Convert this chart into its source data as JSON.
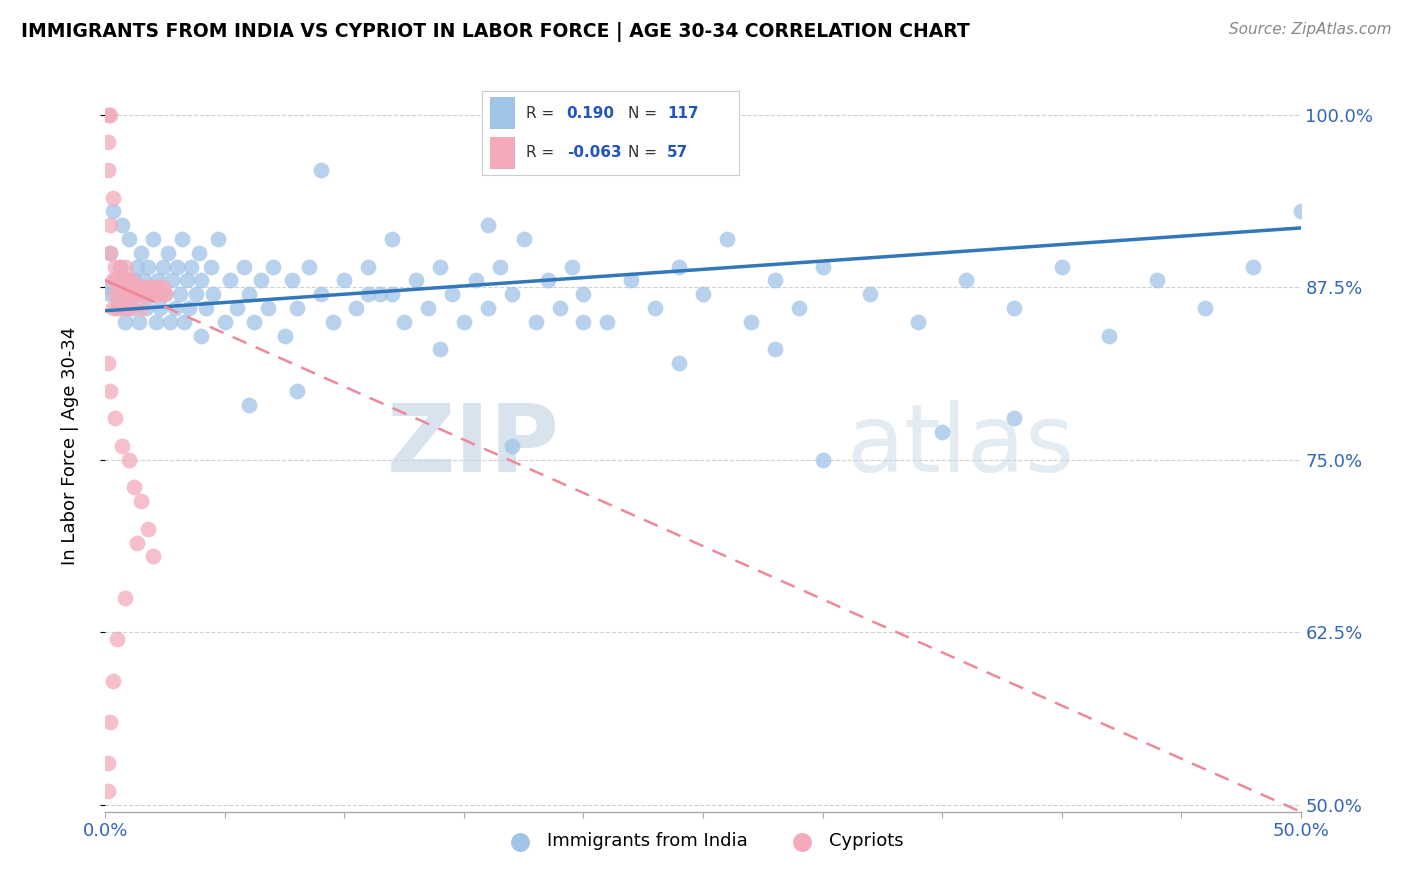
{
  "title": "IMMIGRANTS FROM INDIA VS CYPRIOT IN LABOR FORCE | AGE 30-34 CORRELATION CHART",
  "source": "Source: ZipAtlas.com",
  "ylabel": "In Labor Force | Age 30-34",
  "xlim": [
    0.0,
    0.5
  ],
  "ylim": [
    0.495,
    1.025
  ],
  "xticks": [
    0.0,
    0.05,
    0.1,
    0.15,
    0.2,
    0.25,
    0.3,
    0.35,
    0.4,
    0.45,
    0.5
  ],
  "xticklabels": [
    "0.0%",
    "",
    "",
    "",
    "",
    "",
    "",
    "",
    "",
    "",
    "50.0%"
  ],
  "ytick_positions": [
    0.5,
    0.625,
    0.75,
    0.875,
    1.0
  ],
  "ytick_labels": [
    "50.0%",
    "62.5%",
    "75.0%",
    "87.5%",
    "100.0%"
  ],
  "legend_r_india": "0.190",
  "legend_n_india": "117",
  "legend_r_cypriot": "-0.063",
  "legend_n_cypriot": "57",
  "color_india": "#A0C4E8",
  "color_cypriot": "#F4AABB",
  "color_india_line": "#3377BB",
  "color_cypriot_line": "#EE8899",
  "watermark_zip": "ZIP",
  "watermark_atlas": "atlas",
  "india_x": [
    0.001,
    0.002,
    0.002,
    0.003,
    0.004,
    0.005,
    0.006,
    0.007,
    0.008,
    0.009,
    0.01,
    0.01,
    0.011,
    0.012,
    0.013,
    0.014,
    0.015,
    0.015,
    0.016,
    0.017,
    0.018,
    0.019,
    0.02,
    0.021,
    0.022,
    0.023,
    0.024,
    0.025,
    0.026,
    0.027,
    0.028,
    0.029,
    0.03,
    0.031,
    0.032,
    0.033,
    0.034,
    0.035,
    0.036,
    0.038,
    0.039,
    0.04,
    0.042,
    0.044,
    0.045,
    0.047,
    0.05,
    0.052,
    0.055,
    0.058,
    0.06,
    0.062,
    0.065,
    0.068,
    0.07,
    0.075,
    0.078,
    0.08,
    0.085,
    0.09,
    0.095,
    0.1,
    0.105,
    0.11,
    0.115,
    0.12,
    0.125,
    0.13,
    0.135,
    0.14,
    0.145,
    0.15,
    0.155,
    0.16,
    0.165,
    0.17,
    0.175,
    0.18,
    0.185,
    0.19,
    0.195,
    0.2,
    0.21,
    0.22,
    0.23,
    0.24,
    0.25,
    0.26,
    0.27,
    0.28,
    0.29,
    0.3,
    0.32,
    0.34,
    0.36,
    0.38,
    0.4,
    0.28,
    0.16,
    0.12,
    0.09,
    0.06,
    0.04,
    0.44,
    0.46,
    0.48,
    0.5,
    0.35,
    0.42,
    0.38,
    0.3,
    0.24,
    0.2,
    0.17,
    0.14,
    0.11,
    0.08
  ],
  "india_y": [
    0.875,
    0.9,
    0.87,
    0.93,
    0.88,
    0.86,
    0.89,
    0.92,
    0.85,
    0.88,
    0.87,
    0.91,
    0.86,
    0.88,
    0.89,
    0.85,
    0.87,
    0.9,
    0.88,
    0.86,
    0.89,
    0.87,
    0.91,
    0.85,
    0.88,
    0.86,
    0.89,
    0.87,
    0.9,
    0.85,
    0.88,
    0.86,
    0.89,
    0.87,
    0.91,
    0.85,
    0.88,
    0.86,
    0.89,
    0.87,
    0.9,
    0.88,
    0.86,
    0.89,
    0.87,
    0.91,
    0.85,
    0.88,
    0.86,
    0.89,
    0.87,
    0.85,
    0.88,
    0.86,
    0.89,
    0.84,
    0.88,
    0.86,
    0.89,
    0.87,
    0.85,
    0.88,
    0.86,
    0.89,
    0.87,
    0.91,
    0.85,
    0.88,
    0.86,
    0.89,
    0.87,
    0.85,
    0.88,
    0.86,
    0.89,
    0.87,
    0.91,
    0.85,
    0.88,
    0.86,
    0.89,
    0.87,
    0.85,
    0.88,
    0.86,
    0.89,
    0.87,
    0.91,
    0.85,
    0.88,
    0.86,
    0.89,
    0.87,
    0.85,
    0.88,
    0.86,
    0.89,
    0.83,
    0.92,
    0.87,
    0.96,
    0.79,
    0.84,
    0.88,
    0.86,
    0.89,
    0.93,
    0.77,
    0.84,
    0.78,
    0.75,
    0.82,
    0.85,
    0.76,
    0.83,
    0.87,
    0.8
  ],
  "cypriot_x": [
    0.001,
    0.001,
    0.001,
    0.002,
    0.002,
    0.002,
    0.003,
    0.003,
    0.003,
    0.004,
    0.004,
    0.005,
    0.005,
    0.006,
    0.006,
    0.007,
    0.007,
    0.008,
    0.008,
    0.009,
    0.009,
    0.01,
    0.01,
    0.011,
    0.011,
    0.012,
    0.012,
    0.013,
    0.014,
    0.015,
    0.015,
    0.016,
    0.017,
    0.018,
    0.019,
    0.02,
    0.021,
    0.022,
    0.023,
    0.024,
    0.025,
    0.013,
    0.008,
    0.005,
    0.003,
    0.002,
    0.001,
    0.001,
    0.01,
    0.015,
    0.018,
    0.02,
    0.012,
    0.007,
    0.004,
    0.002,
    0.001
  ],
  "cypriot_y": [
    1.0,
    0.98,
    0.96,
    1.0,
    0.92,
    0.9,
    0.88,
    0.86,
    0.94,
    0.89,
    0.87,
    0.88,
    0.86,
    0.89,
    0.87,
    0.88,
    0.86,
    0.89,
    0.87,
    0.88,
    0.86,
    0.875,
    0.86,
    0.88,
    0.87,
    0.875,
    0.87,
    0.87,
    0.875,
    0.875,
    0.86,
    0.875,
    0.87,
    0.875,
    0.87,
    0.875,
    0.87,
    0.875,
    0.87,
    0.875,
    0.87,
    0.69,
    0.65,
    0.62,
    0.59,
    0.56,
    0.53,
    0.51,
    0.75,
    0.72,
    0.7,
    0.68,
    0.73,
    0.76,
    0.78,
    0.8,
    0.82
  ],
  "india_trend_x0": 0.0,
  "india_trend_y0": 0.858,
  "india_trend_x1": 0.5,
  "india_trend_y1": 0.918,
  "cypriot_trend_x0": 0.0,
  "cypriot_trend_y0": 0.88,
  "cypriot_trend_x1": 0.5,
  "cypriot_trend_y1": 0.495
}
